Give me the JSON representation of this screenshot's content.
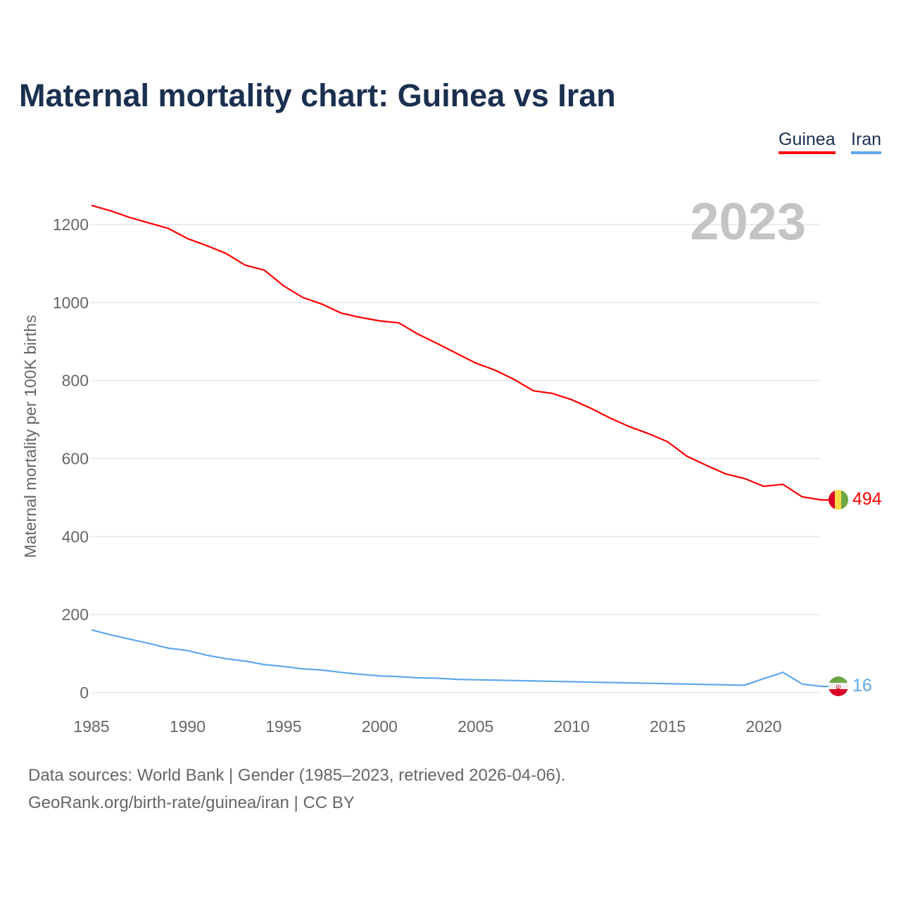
{
  "title": "Maternal mortality chart: Guinea vs Iran",
  "year_label": "2023",
  "footer": {
    "line1": "Data sources: World Bank | Gender (1985–2023, retrieved 2026-04-06).",
    "line2": "GeoRank.org/birth-rate/guinea/iran | CC BY"
  },
  "chart_data": {
    "type": "line",
    "title": "Maternal mortality chart: Guinea vs Iran",
    "xlabel": "",
    "ylabel": "Maternal mortality per 100K births",
    "xlim": [
      1985,
      2023
    ],
    "ylim": [
      0,
      1300
    ],
    "xticks": [
      1985,
      1990,
      1995,
      2000,
      2005,
      2010,
      2015,
      2020
    ],
    "yticks": [
      0,
      200,
      400,
      600,
      800,
      1000,
      1200
    ],
    "grid": true,
    "legend": "top-right",
    "x": [
      1985,
      1986,
      1987,
      1988,
      1989,
      1990,
      1991,
      1992,
      1993,
      1994,
      1995,
      1996,
      1997,
      1998,
      1999,
      2000,
      2001,
      2002,
      2003,
      2004,
      2005,
      2006,
      2007,
      2008,
      2009,
      2010,
      2011,
      2012,
      2013,
      2014,
      2015,
      2016,
      2017,
      2018,
      2019,
      2020,
      2021,
      2022,
      2023
    ],
    "series": [
      {
        "name": "Guinea",
        "color": "#ff0000",
        "end_label": "494",
        "values": [
          1249,
          1235,
          1218,
          1204,
          1190,
          1164,
          1146,
          1126,
          1096,
          1083,
          1043,
          1013,
          996,
          973,
          962,
          953,
          948,
          919,
          895,
          870,
          845,
          827,
          803,
          774,
          767,
          751,
          729,
          704,
          682,
          664,
          643,
          606,
          583,
          561,
          549,
          529,
          534,
          502,
          494
        ]
      },
      {
        "name": "Iran",
        "color": "#5fa8ec",
        "end_label": "16",
        "values": [
          161,
          148,
          137,
          126,
          114,
          108,
          96,
          87,
          81,
          72,
          67,
          61,
          58,
          52,
          47,
          43,
          41,
          38,
          37,
          34,
          33,
          32,
          31,
          30,
          29,
          28,
          27,
          26,
          25,
          24,
          23,
          22,
          21,
          20,
          19,
          36,
          52,
          22,
          16
        ]
      }
    ]
  }
}
